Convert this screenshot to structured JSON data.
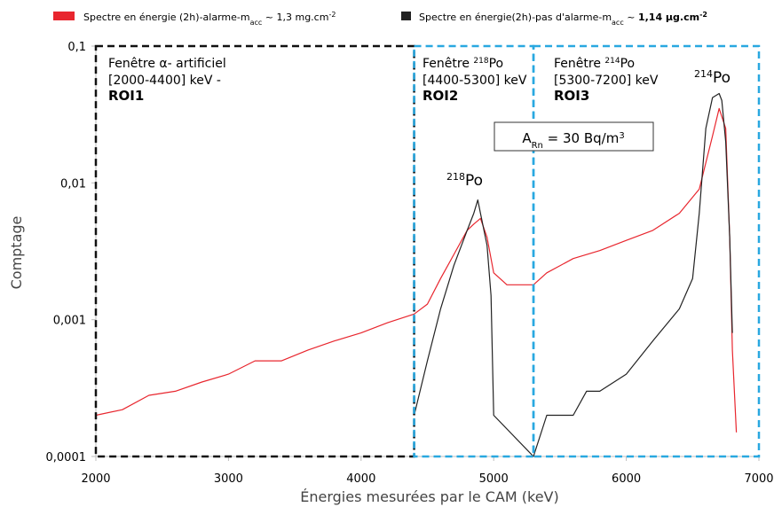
{
  "chart_data": {
    "type": "line",
    "xlabel": "Énergies mesurées par le CAM (keV)",
    "ylabel": "Comptage",
    "xlim": [
      2000,
      7000
    ],
    "ylim": [
      0.0001,
      0.1
    ],
    "yscale": "log",
    "grid": false,
    "legend_position": "top",
    "x_ticks": [
      "2000",
      "3000",
      "4000",
      "5000",
      "6000",
      "7000"
    ],
    "y_ticks": [
      "0,0001",
      "0,001",
      "0,01",
      "0,1"
    ],
    "series": [
      {
        "name": "Spectre en énergie (2h)-alarme-m",
        "name_sub": "acc",
        "name_suffix": " ~ 1,3 mg.cm",
        "name_sup": "-2",
        "color": "#e8262e",
        "x": [
          2000,
          2200,
          2400,
          2600,
          2800,
          3000,
          3200,
          3400,
          3600,
          3800,
          4000,
          4200,
          4400,
          4500,
          4600,
          4700,
          4800,
          4850,
          4900,
          4950,
          5000,
          5100,
          5200,
          5300,
          5400,
          5600,
          5800,
          6000,
          6200,
          6400,
          6550,
          6650,
          6700,
          6750,
          6780,
          6800,
          6830
        ],
        "values": [
          0.0002,
          0.00022,
          0.00028,
          0.0003,
          0.00035,
          0.0004,
          0.0005,
          0.0005,
          0.0006,
          0.0007,
          0.0008,
          0.00095,
          0.0011,
          0.0013,
          0.002,
          0.003,
          0.0045,
          0.005,
          0.0055,
          0.004,
          0.0022,
          0.0018,
          0.0018,
          0.0018,
          0.0022,
          0.0028,
          0.0032,
          0.0038,
          0.0045,
          0.006,
          0.009,
          0.022,
          0.035,
          0.025,
          0.004,
          0.0006,
          0.00015
        ]
      },
      {
        "name": "Spectre en énergie(2h)-pas d'alarme-m",
        "name_sub": "acc",
        "name_suffix": " ~ ",
        "name_bold": "1,14 µg.cm",
        "name_sup": "-2",
        "color": "#222222",
        "x": [
          4400,
          4500,
          4600,
          4700,
          4800,
          4850,
          4880,
          4900,
          4950,
          4980,
          5000,
          5300,
          5400,
          5600,
          5700,
          5800,
          6000,
          6200,
          6400,
          6500,
          6550,
          6600,
          6650,
          6700,
          6720,
          6750,
          6780,
          6800
        ],
        "values": [
          0.0002,
          0.0005,
          0.0012,
          0.0025,
          0.0045,
          0.006,
          0.0075,
          0.006,
          0.0035,
          0.0015,
          0.0002,
          0.0001,
          0.0002,
          0.0002,
          0.0003,
          0.0003,
          0.0004,
          0.0007,
          0.0012,
          0.002,
          0.006,
          0.025,
          0.042,
          0.045,
          0.04,
          0.02,
          0.004,
          0.0008
        ]
      }
    ],
    "rois": [
      {
        "label": "Fenêtre α- artificiel",
        "range": "[2000-4400] keV -",
        "name": "ROI1",
        "x_range": [
          2000,
          4400
        ],
        "color": "#111111"
      },
      {
        "label_pre": "Fenêtre ",
        "label_sup": "218",
        "label_post": "Po",
        "range": "[4400-5300] keV",
        "name": "ROI2",
        "x_range": [
          4400,
          5300
        ],
        "color": "#29a8e0"
      },
      {
        "label_pre": "Fenêtre ",
        "label_sup": "214",
        "label_post": "Po",
        "range": "[5300-7200] keV",
        "name": "ROI3",
        "x_range": [
          5300,
          7200
        ],
        "color": "#29a8e0"
      }
    ],
    "annotations": {
      "peak_218": {
        "sup": "218",
        "text": "Po"
      },
      "peak_214": {
        "sup": "214",
        "text": "Po"
      },
      "activity": {
        "pre": "A",
        "sub": "Rn",
        "mid": " = 30 Bq/m",
        "sup": "3"
      }
    }
  }
}
